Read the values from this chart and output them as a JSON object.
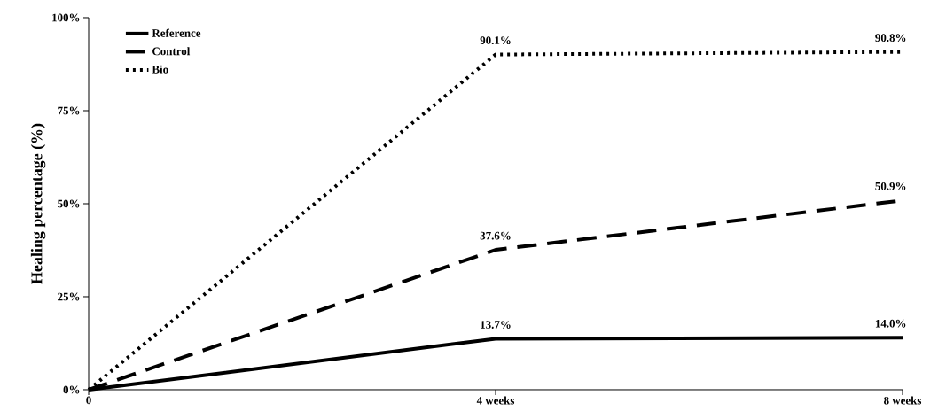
{
  "chart_data": {
    "type": "line",
    "ylabel": "Healing percentage (%)",
    "categories": [
      "0",
      "4 weeks",
      "8 weeks"
    ],
    "series": [
      {
        "name": "Reference",
        "color": "#000000",
        "line_style": "solid",
        "values": [
          0,
          13.7,
          14.0
        ],
        "value_labels": [
          null,
          "13.7%",
          "14.0%"
        ]
      },
      {
        "name": "Control",
        "color": "#000000",
        "line_style": "dashed",
        "values": [
          0,
          37.6,
          50.9
        ],
        "value_labels": [
          null,
          "37.6%",
          "50.9%"
        ]
      },
      {
        "name": "Bio",
        "color": "#000000",
        "line_style": "dotted",
        "values": [
          0,
          90.1,
          90.8
        ],
        "value_labels": [
          null,
          "90.1%",
          "90.8%"
        ]
      }
    ],
    "ylim": [
      0,
      100
    ],
    "yticks": [
      {
        "value": 0,
        "label": "0%"
      },
      {
        "value": 25,
        "label": "25%"
      },
      {
        "value": 50,
        "label": "50%"
      },
      {
        "value": 75,
        "label": "75%"
      },
      {
        "value": 100,
        "label": "100%"
      }
    ],
    "legend": "top left",
    "grid": false,
    "marker": "none"
  }
}
